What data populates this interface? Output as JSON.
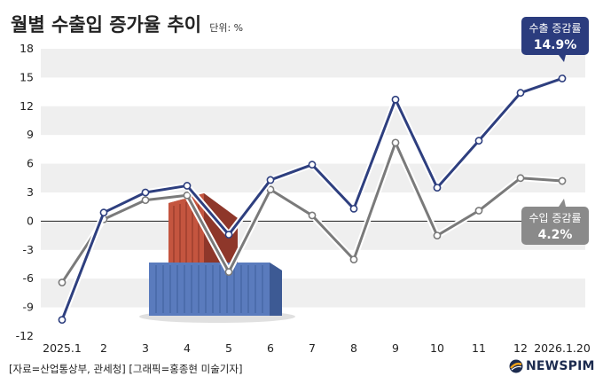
{
  "title": "월별 수출입 증가율 추이",
  "unit": "단위: %",
  "footer": "[자료=산업통상부, 관세청] [그래픽=홍종현 미술기자]",
  "logo": "NEWSPIM",
  "colors": {
    "export": "#2e3f7f",
    "import": "#7a7a7a",
    "export_callout": "#2b3c7e",
    "import_callout": "#8a8a8a",
    "band": "#efefef"
  },
  "callouts": {
    "export": {
      "label": "수출 증감률",
      "value": "14.9%"
    },
    "import": {
      "label": "수입 증감률",
      "value": "4.2%"
    }
  },
  "chart_data": {
    "type": "line",
    "categories": [
      "2025.1",
      "2",
      "3",
      "4",
      "5",
      "6",
      "7",
      "8",
      "9",
      "10",
      "11",
      "12",
      "2026.1.20"
    ],
    "ylim": [
      -12,
      18
    ],
    "yticks": [
      -12,
      -9,
      -6,
      -3,
      0,
      3,
      6,
      9,
      12,
      15,
      18
    ],
    "grid": "alternating horizontal bands",
    "series": [
      {
        "name": "수출 증감률",
        "values": [
          -10.3,
          0.9,
          3.0,
          3.7,
          -1.4,
          4.3,
          5.9,
          1.3,
          12.7,
          3.5,
          8.4,
          13.4,
          14.9
        ]
      },
      {
        "name": "수입 증감률",
        "values": [
          -6.4,
          0.2,
          2.2,
          2.7,
          -5.3,
          3.3,
          0.6,
          -4.0,
          8.2,
          -1.5,
          1.1,
          4.5,
          4.2
        ]
      }
    ]
  }
}
